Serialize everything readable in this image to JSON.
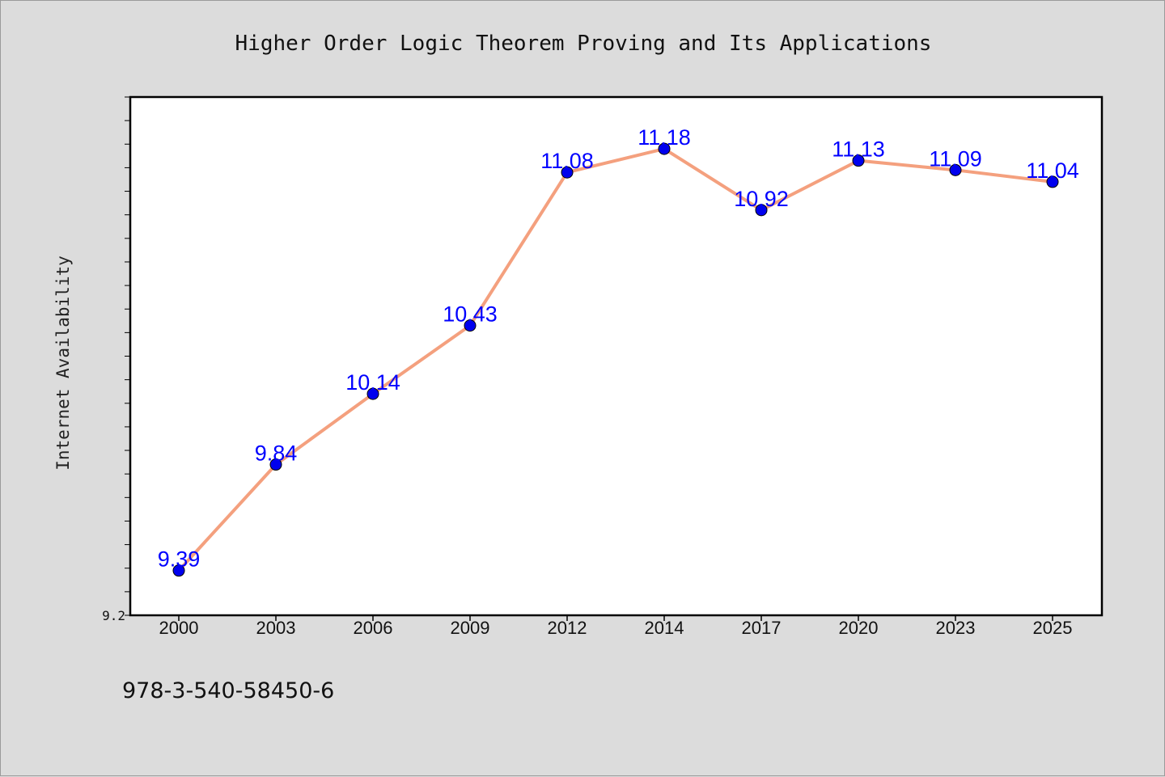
{
  "chart_data": {
    "type": "line",
    "title": "Higher Order Logic Theorem Proving and Its Applications",
    "xlabel": "",
    "ylabel": "Internet Availability",
    "categories": [
      "2000",
      "2003",
      "2006",
      "2009",
      "2012",
      "2014",
      "2017",
      "2020",
      "2023",
      "2025"
    ],
    "series": [
      {
        "values": [
          9.39,
          9.84,
          10.14,
          10.43,
          11.08,
          11.18,
          10.92,
          11.13,
          11.09,
          11.04
        ],
        "value_labels": [
          "9.39",
          "9.84",
          "10.14",
          "10.43",
          "11.08",
          "11.18",
          "10.92",
          "11.13",
          "11.09",
          "11.04"
        ],
        "line_color": "#f4a07e",
        "marker_color": "#0000ee"
      }
    ],
    "ylim": [
      9.2,
      11.4
    ],
    "y_tick_labels": [
      "9.2"
    ],
    "grid": false,
    "legend": "none",
    "label_color": "#0000ff",
    "plot_background": "#ffffff",
    "figure_background": "#dcdcdc"
  },
  "footer": {
    "isbn": "978-3-540-58450-6"
  }
}
